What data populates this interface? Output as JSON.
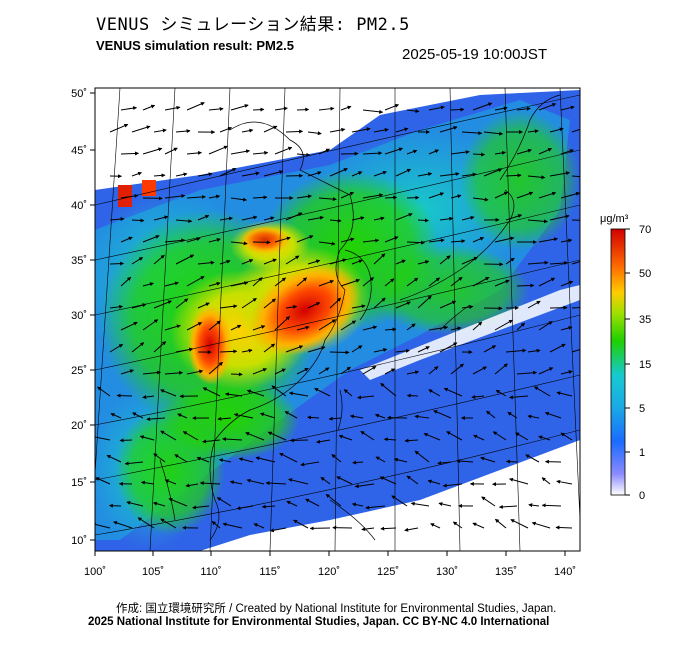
{
  "header": {
    "title_jp": "VENUS シミュレーション結果: PM2.5",
    "title_en": "VENUS simulation result: PM2.5",
    "timestamp": "2025-05-19 10:00JST"
  },
  "map": {
    "lon_ticks": [
      "100˚",
      "105˚",
      "110˚",
      "115˚",
      "120˚",
      "125˚",
      "130˚",
      "135˚",
      "140˚"
    ],
    "lat_ticks": [
      "50˚",
      "45˚",
      "40˚",
      "35˚",
      "30˚",
      "25˚",
      "20˚",
      "15˚",
      "10˚"
    ]
  },
  "colorbar": {
    "unit": "μg/m³",
    "ticks": [
      "70",
      "50",
      "35",
      "15",
      "5",
      "1",
      "0"
    ],
    "colors": [
      "#d10000",
      "#ff6a00",
      "#ffcc00",
      "#1fd000",
      "#16c9d0",
      "#1b6bff",
      "#6a6aff",
      "#ffffff"
    ]
  },
  "footer": {
    "credit_jp": "作成: 国立環境研究所 / Created by National Institute for Environmental Studies, Japan.",
    "copyright": "2025 National Institute for Environmental Studies, Japan. CC BY-NC 4.0 International"
  }
}
